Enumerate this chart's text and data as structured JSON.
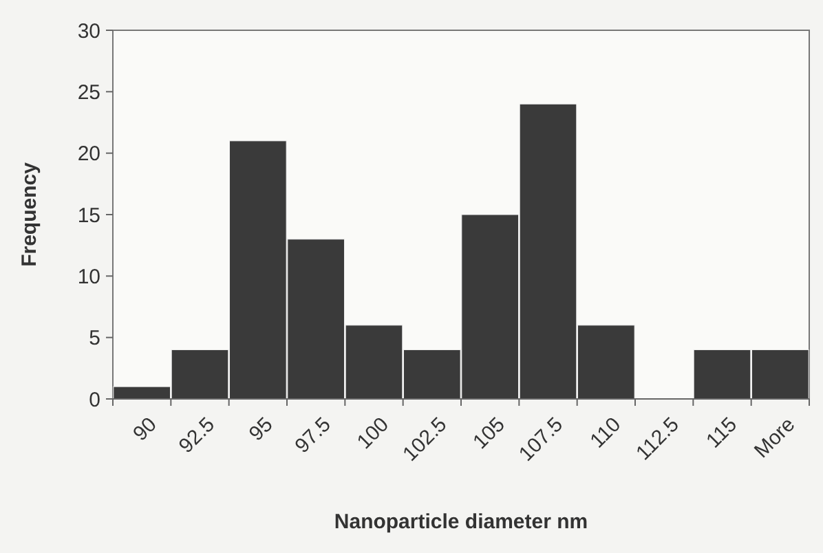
{
  "chart_data": {
    "type": "bar",
    "xlabel": "Nanoparticle diameter nm",
    "ylabel": "Frequency",
    "categories": [
      "90",
      "92.5",
      "95",
      "97.5",
      "100",
      "102.5",
      "105",
      "107.5",
      "110",
      "112.5",
      "115",
      "More"
    ],
    "values": [
      1,
      4,
      21,
      13,
      6,
      4,
      15,
      24,
      6,
      0,
      4,
      4
    ],
    "color": "#3a3a3a",
    "ylim": [
      0,
      30
    ],
    "yticks": [
      0,
      5,
      10,
      15,
      20,
      25,
      30
    ],
    "grid": false
  }
}
